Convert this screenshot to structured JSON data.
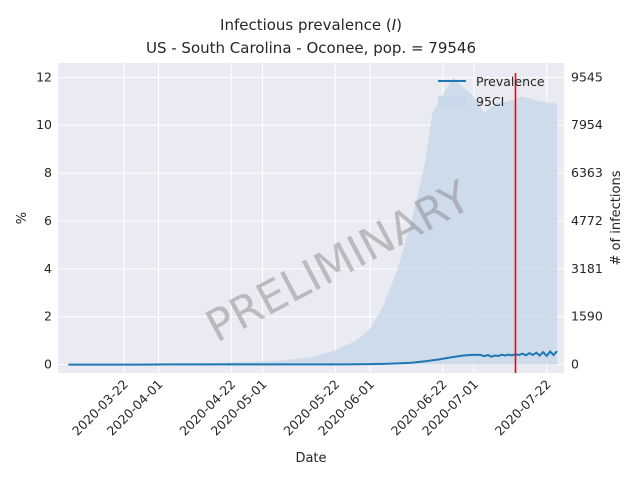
{
  "chart_data": {
    "type": "line",
    "title_line1": "Infectious prevalence (",
    "title_italic": "I",
    "title_line1_end": ")",
    "title_line2": "US - South Carolina - Oconee, pop. = 79546",
    "xlabel": "Date",
    "ylabel": "%",
    "ylabel_right": "# of infections",
    "watermark": "PRELIMINARY",
    "ylim": [
      -0.35,
      12.6
    ],
    "yticks": [
      0,
      2,
      4,
      6,
      8,
      10,
      12
    ],
    "yticks_right": [
      "0",
      "1590",
      "3181",
      "4772",
      "6363",
      "7954",
      "9545"
    ],
    "xlim": [
      "2020-03-03",
      "2020-07-27"
    ],
    "xticks": [
      "2020-03-22",
      "2020-04-01",
      "2020-04-22",
      "2020-05-01",
      "2020-05-22",
      "2020-06-01",
      "2020-06-22",
      "2020-07-01",
      "2020-07-22"
    ],
    "grid": true,
    "legend_position": "top-right",
    "vline_date": "2020-07-13",
    "colors": {
      "line": "#1f77b4",
      "band": "#c9d8ea",
      "vline": "#ff0000",
      "bg": "#eaeaf2",
      "grid": "#ffffff"
    },
    "series": [
      {
        "name": "Prevalence",
        "points": [
          [
            "2020-03-06",
            0.0
          ],
          [
            "2020-03-16",
            0.0
          ],
          [
            "2020-03-26",
            0.0
          ],
          [
            "2020-04-05",
            0.01
          ],
          [
            "2020-04-15",
            0.01
          ],
          [
            "2020-04-25",
            0.01
          ],
          [
            "2020-05-05",
            0.01
          ],
          [
            "2020-05-15",
            0.01
          ],
          [
            "2020-05-25",
            0.01
          ],
          [
            "2020-06-01",
            0.02
          ],
          [
            "2020-06-05",
            0.03
          ],
          [
            "2020-06-09",
            0.05
          ],
          [
            "2020-06-13",
            0.08
          ],
          [
            "2020-06-17",
            0.14
          ],
          [
            "2020-06-21",
            0.22
          ],
          [
            "2020-06-25",
            0.32
          ],
          [
            "2020-06-28",
            0.38
          ],
          [
            "2020-07-01",
            0.41
          ],
          [
            "2020-07-03",
            0.4
          ],
          [
            "2020-07-04",
            0.35
          ],
          [
            "2020-07-05",
            0.4
          ],
          [
            "2020-07-06",
            0.33
          ],
          [
            "2020-07-07",
            0.38
          ],
          [
            "2020-07-08",
            0.36
          ],
          [
            "2020-07-09",
            0.41
          ],
          [
            "2020-07-10",
            0.38
          ],
          [
            "2020-07-11",
            0.42
          ],
          [
            "2020-07-12",
            0.39
          ],
          [
            "2020-07-13",
            0.43
          ],
          [
            "2020-07-14",
            0.4
          ],
          [
            "2020-07-15",
            0.46
          ],
          [
            "2020-07-16",
            0.39
          ],
          [
            "2020-07-17",
            0.48
          ],
          [
            "2020-07-18",
            0.4
          ],
          [
            "2020-07-19",
            0.5
          ],
          [
            "2020-07-20",
            0.38
          ],
          [
            "2020-07-21",
            0.52
          ],
          [
            "2020-07-22",
            0.36
          ],
          [
            "2020-07-23",
            0.55
          ],
          [
            "2020-07-24",
            0.4
          ],
          [
            "2020-07-25",
            0.56
          ]
        ]
      },
      {
        "name": "95CI",
        "band": [
          [
            "2020-03-06",
            0.0,
            0.0
          ],
          [
            "2020-03-26",
            0.0,
            0.02
          ],
          [
            "2020-04-15",
            0.0,
            0.05
          ],
          [
            "2020-05-05",
            0.0,
            0.15
          ],
          [
            "2020-05-15",
            0.0,
            0.3
          ],
          [
            "2020-05-22",
            0.0,
            0.6
          ],
          [
            "2020-05-28",
            0.0,
            1.0
          ],
          [
            "2020-06-01",
            0.0,
            1.5
          ],
          [
            "2020-06-05",
            0.0,
            2.5
          ],
          [
            "2020-06-09",
            0.0,
            4.0
          ],
          [
            "2020-06-13",
            0.0,
            6.0
          ],
          [
            "2020-06-17",
            0.0,
            8.5
          ],
          [
            "2020-06-19",
            0.0,
            10.5
          ],
          [
            "2020-06-23",
            0.0,
            11.5
          ],
          [
            "2020-06-25",
            0.0,
            12.0
          ],
          [
            "2020-06-27",
            0.0,
            11.7
          ],
          [
            "2020-07-01",
            0.0,
            11.2
          ],
          [
            "2020-07-04",
            0.0,
            10.5
          ],
          [
            "2020-07-07",
            0.0,
            10.9
          ],
          [
            "2020-07-11",
            0.0,
            11.0
          ],
          [
            "2020-07-15",
            0.0,
            11.2
          ],
          [
            "2020-07-20",
            0.0,
            11.0
          ],
          [
            "2020-07-25",
            0.0,
            10.9
          ]
        ]
      }
    ]
  }
}
